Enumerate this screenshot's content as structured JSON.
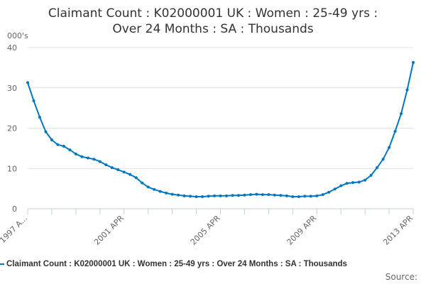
{
  "chart_data": {
    "type": "line",
    "title": [
      "Claimant Count : K02000001 UK : Women : 25-49 yrs :",
      "Over 24 Months : SA : Thousands"
    ],
    "ylabel": "000's",
    "ylim": [
      0,
      40
    ],
    "yticks": [
      "0",
      "10",
      "20",
      "30",
      "40"
    ],
    "xlim": [
      "1997 APR",
      "2013 APR"
    ],
    "xtick_labels": [
      "1997 A...",
      "2001 APR",
      "2005 APR",
      "2009 APR",
      "2013 APR"
    ],
    "grid": true,
    "color": "#0077c0",
    "series": [
      {
        "name": "Claimant Count : K02000001 UK : Women : 25-49 yrs : Over 24 Months : SA : Thousands",
        "frequency": "quarterly",
        "x_start": "1997 APR",
        "values": [
          31.3,
          26.8,
          22.7,
          19.1,
          17.1,
          15.9,
          15.5,
          14.6,
          13.6,
          12.9,
          12.6,
          12.3,
          11.7,
          10.9,
          10.2,
          9.7,
          9.1,
          8.5,
          7.7,
          6.4,
          5.4,
          4.8,
          4.3,
          3.9,
          3.6,
          3.4,
          3.2,
          3.1,
          3.0,
          3.0,
          3.1,
          3.2,
          3.2,
          3.2,
          3.3,
          3.3,
          3.4,
          3.5,
          3.6,
          3.5,
          3.5,
          3.4,
          3.3,
          3.2,
          3.0,
          3.0,
          3.1,
          3.1,
          3.2,
          3.5,
          4.1,
          4.9,
          5.7,
          6.3,
          6.5,
          6.6,
          7.1,
          8.3,
          10.2,
          12.3,
          15.2,
          19.2,
          23.6,
          29.5,
          36.3
        ]
      }
    ],
    "legend": "bottom",
    "source_label": "Source:"
  }
}
